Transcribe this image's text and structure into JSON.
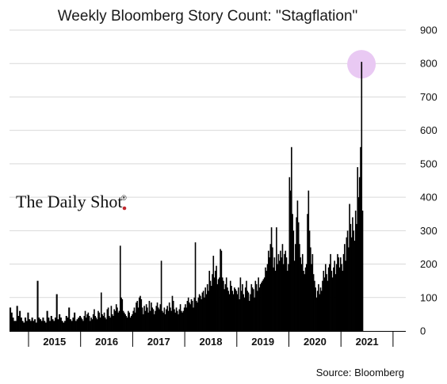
{
  "chart_data": {
    "type": "bar",
    "title": "Weekly Bloomberg Story Count: \"Stagflation\"",
    "xlabel": "",
    "ylabel": "",
    "ylim": [
      0,
      900
    ],
    "yticks": [
      0,
      100,
      200,
      300,
      400,
      500,
      600,
      700,
      800,
      900
    ],
    "y_axis_side": "right",
    "grid": "horizontal",
    "x_categories": [
      "2015",
      "2016",
      "2017",
      "2018",
      "2019",
      "2020",
      "2021"
    ],
    "series_color": "#000000",
    "highlight": {
      "year": 2021,
      "week": 20,
      "value": 805,
      "color": "#e9c9f3"
    },
    "weeks": {
      "2015": [
        70,
        55,
        40,
        30,
        30,
        75,
        45,
        60,
        40,
        30,
        25,
        40,
        30,
        55,
        35,
        30,
        40,
        30,
        35,
        25,
        150,
        40,
        35,
        30,
        40,
        30,
        25,
        60,
        40,
        30,
        45,
        35,
        30,
        40,
        110,
        35,
        50,
        40,
        30,
        25,
        30,
        45,
        40,
        70,
        35,
        30,
        40,
        55,
        30,
        35,
        40,
        45
      ],
      "2016": [
        40,
        35,
        30,
        45,
        60,
        40,
        50,
        55,
        45,
        30,
        40,
        35,
        50,
        65,
        45,
        40,
        35,
        60,
        55,
        40,
        115,
        50,
        45,
        55,
        40,
        35,
        65,
        70,
        45,
        40,
        75,
        50,
        45,
        65,
        60,
        80,
        70,
        55,
        60,
        255,
        100,
        95,
        60,
        55,
        50,
        45,
        40,
        60,
        55,
        40,
        45,
        50
      ],
      "2017": [
        60,
        70,
        55,
        85,
        90,
        70,
        100,
        105,
        95,
        70,
        50,
        75,
        60,
        80,
        70,
        55,
        90,
        60,
        85,
        70,
        65,
        50,
        60,
        75,
        85,
        70,
        65,
        80,
        210,
        60,
        55,
        70,
        50,
        65,
        75,
        60,
        85,
        70,
        60,
        105,
        90,
        65,
        55,
        70,
        60,
        50,
        65,
        80,
        60,
        55,
        60,
        70
      ],
      "2018": [
        80,
        70,
        90,
        100,
        85,
        80,
        95,
        90,
        70,
        100,
        265,
        90,
        85,
        100,
        110,
        105,
        95,
        115,
        120,
        100,
        130,
        110,
        140,
        120,
        180,
        150,
        135,
        170,
        225,
        160,
        180,
        195,
        140,
        155,
        160,
        245,
        240,
        160,
        150,
        125,
        140,
        160,
        130,
        120,
        110,
        150,
        135,
        120,
        110,
        130,
        125,
        120
      ],
      "2019": [
        110,
        130,
        95,
        160,
        120,
        140,
        110,
        100,
        130,
        150,
        120,
        115,
        90,
        110,
        140,
        130,
        125,
        100,
        150,
        140,
        120,
        160,
        130,
        140,
        145,
        150,
        155,
        160,
        190,
        180,
        200,
        240,
        220,
        260,
        310,
        250,
        190,
        220,
        180,
        310,
        200,
        230,
        210,
        240,
        220,
        260,
        200,
        230,
        240,
        220,
        180,
        200
      ],
      "2020": [
        460,
        420,
        550,
        350,
        300,
        210,
        260,
        340,
        390,
        325,
        260,
        220,
        200,
        230,
        180,
        170,
        190,
        200,
        350,
        420,
        300,
        250,
        200,
        230,
        170,
        150,
        130,
        100,
        120,
        140,
        110,
        130,
        120,
        150,
        180,
        160,
        200,
        170,
        150,
        190,
        200,
        230,
        180,
        160,
        190,
        210,
        170,
        200,
        230,
        220,
        190,
        220
      ],
      "2021": [
        200,
        180,
        230,
        260,
        210,
        280,
        300,
        250,
        380,
        320,
        280,
        340,
        300,
        270,
        360,
        320,
        490,
        400,
        460,
        550,
        805,
        360
      ]
    }
  },
  "logo_text": "The Daily Shot",
  "logo_mark": "®",
  "source": "Source: Bloomberg"
}
